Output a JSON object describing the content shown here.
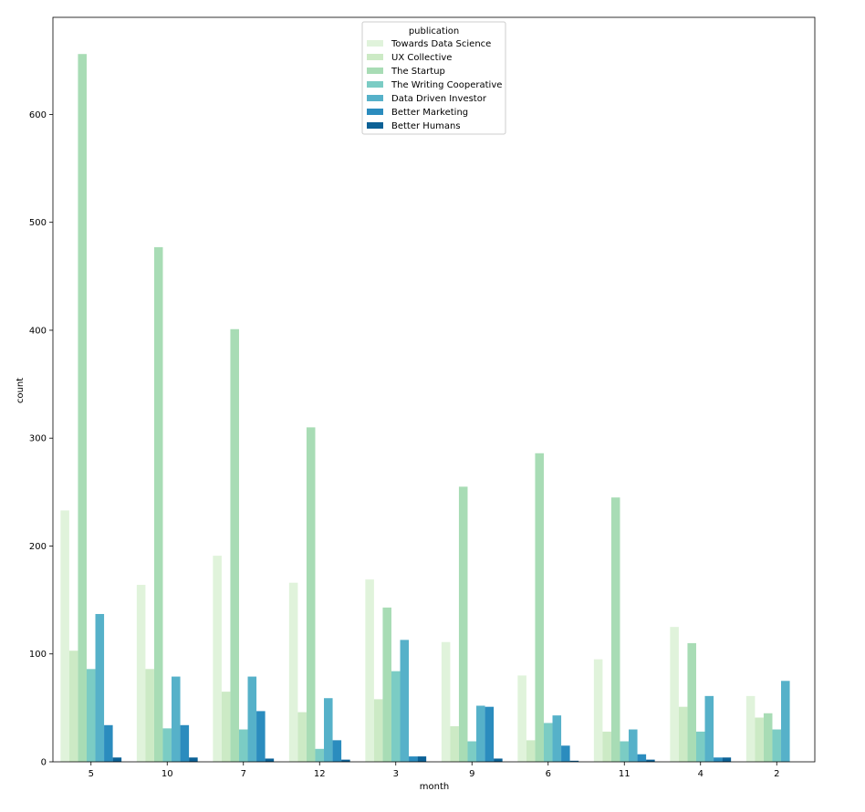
{
  "chart_data": {
    "type": "bar",
    "xlabel": "month",
    "ylabel": "count",
    "ylim": [
      0,
      690
    ],
    "yticks": [
      0,
      100,
      200,
      300,
      400,
      500,
      600
    ],
    "categories": [
      "5",
      "10",
      "7",
      "12",
      "3",
      "9",
      "6",
      "11",
      "4",
      "2"
    ],
    "legend": {
      "title": "publication",
      "placement": "top-center"
    },
    "grid": false,
    "series": [
      {
        "name": "Towards Data Science",
        "color": "#e0f3db",
        "values": [
          233,
          164,
          191,
          166,
          169,
          111,
          80,
          95,
          125,
          61
        ]
      },
      {
        "name": "UX Collective",
        "color": "#cceac5",
        "values": [
          103,
          86,
          65,
          46,
          58,
          33,
          20,
          28,
          51,
          41
        ]
      },
      {
        "name": "The Startup",
        "color": "#a8dcb5",
        "values": [
          656,
          477,
          401,
          310,
          143,
          255,
          286,
          245,
          110,
          45
        ]
      },
      {
        "name": "The Writing Cooperative",
        "color": "#7bccc4",
        "values": [
          86,
          31,
          30,
          12,
          84,
          19,
          36,
          19,
          28,
          30
        ]
      },
      {
        "name": "Data Driven Investor",
        "color": "#56b1c9",
        "values": [
          137,
          79,
          79,
          59,
          113,
          52,
          43,
          30,
          61,
          75
        ]
      },
      {
        "name": "Better Marketing",
        "color": "#2b8cbe",
        "values": [
          34,
          34,
          47,
          20,
          5,
          51,
          15,
          7,
          4,
          0
        ]
      },
      {
        "name": "Better Humans",
        "color": "#0c6196",
        "values": [
          4,
          4,
          3,
          2,
          5,
          3,
          1,
          2,
          4,
          0
        ]
      }
    ]
  }
}
